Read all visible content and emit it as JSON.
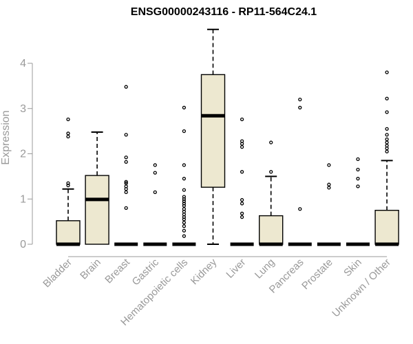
{
  "chart_data": {
    "type": "box",
    "title": "ENSG00000243116 - RP11-564C24.1",
    "xlabel": "",
    "ylabel": "Expression",
    "ylim": [
      0,
      4.9
    ],
    "yticks": [
      0,
      1,
      2,
      3,
      4
    ],
    "grid": false,
    "box_fill": "#ede8d0",
    "categories": [
      "Bladder",
      "Brain",
      "Breast",
      "Gastric",
      "Hematopoietic cells",
      "Kidney",
      "Liver",
      "Lung",
      "Pancreas",
      "Prostate",
      "Skin",
      "Unknown / Other"
    ],
    "series": [
      {
        "category": "Bladder",
        "q1": 0,
        "median": 0,
        "q3": 0.52,
        "whisker_low": 0,
        "whisker_high": 1.22,
        "outliers": [
          1.3,
          1.35,
          2.38,
          2.45,
          2.76
        ]
      },
      {
        "category": "Brain",
        "q1": 0,
        "median": 0.99,
        "q3": 1.52,
        "whisker_low": 0,
        "whisker_high": 2.48,
        "outliers": []
      },
      {
        "category": "Breast",
        "q1": 0,
        "median": 0,
        "q3": 0,
        "whisker_low": 0,
        "whisker_high": 0,
        "outliers": [
          0.8,
          1.15,
          1.22,
          1.28,
          1.35,
          1.38,
          1.82,
          1.92,
          2.42,
          3.48
        ]
      },
      {
        "category": "Gastric",
        "q1": 0,
        "median": 0,
        "q3": 0,
        "whisker_low": 0,
        "whisker_high": 0,
        "outliers": [
          1.15,
          1.58,
          1.75
        ]
      },
      {
        "category": "Hematopoietic cells",
        "q1": 0,
        "median": 0,
        "q3": 0,
        "whisker_low": 0,
        "whisker_high": 0,
        "outliers": [
          0.18,
          0.3,
          0.4,
          0.48,
          0.55,
          0.6,
          0.66,
          0.72,
          0.78,
          0.85,
          0.9,
          0.95,
          1.0,
          1.05,
          1.2,
          1.45,
          1.75,
          2.5,
          3.02
        ]
      },
      {
        "category": "Kidney",
        "q1": 1.26,
        "median": 2.84,
        "q3": 3.75,
        "whisker_low": 0,
        "whisker_high": 4.75,
        "outliers": []
      },
      {
        "category": "Liver",
        "q1": 0,
        "median": 0,
        "q3": 0,
        "whisker_low": 0,
        "whisker_high": 0,
        "outliers": [
          0.6,
          0.68,
          0.9,
          0.98,
          1.6,
          2.15,
          2.22,
          2.28,
          2.76
        ]
      },
      {
        "category": "Lung",
        "q1": 0,
        "median": 0,
        "q3": 0.63,
        "whisker_low": 0,
        "whisker_high": 1.5,
        "outliers": [
          1.6,
          2.25
        ]
      },
      {
        "category": "Pancreas",
        "q1": 0,
        "median": 0,
        "q3": 0,
        "whisker_low": 0,
        "whisker_high": 0,
        "outliers": [
          0.78,
          3.02,
          3.2
        ]
      },
      {
        "category": "Prostate",
        "q1": 0,
        "median": 0,
        "q3": 0,
        "whisker_low": 0,
        "whisker_high": 0,
        "outliers": [
          1.25,
          1.32,
          1.75
        ]
      },
      {
        "category": "Skin",
        "q1": 0,
        "median": 0,
        "q3": 0,
        "whisker_low": 0,
        "whisker_high": 0,
        "outliers": [
          1.28,
          1.45,
          1.65,
          1.88
        ]
      },
      {
        "category": "Unknown / Other",
        "q1": 0,
        "median": 0,
        "q3": 0.75,
        "whisker_low": 0,
        "whisker_high": 1.85,
        "outliers": [
          2.05,
          2.12,
          2.18,
          2.25,
          2.32,
          2.42,
          2.55,
          2.92,
          3.22,
          3.8
        ]
      }
    ]
  }
}
